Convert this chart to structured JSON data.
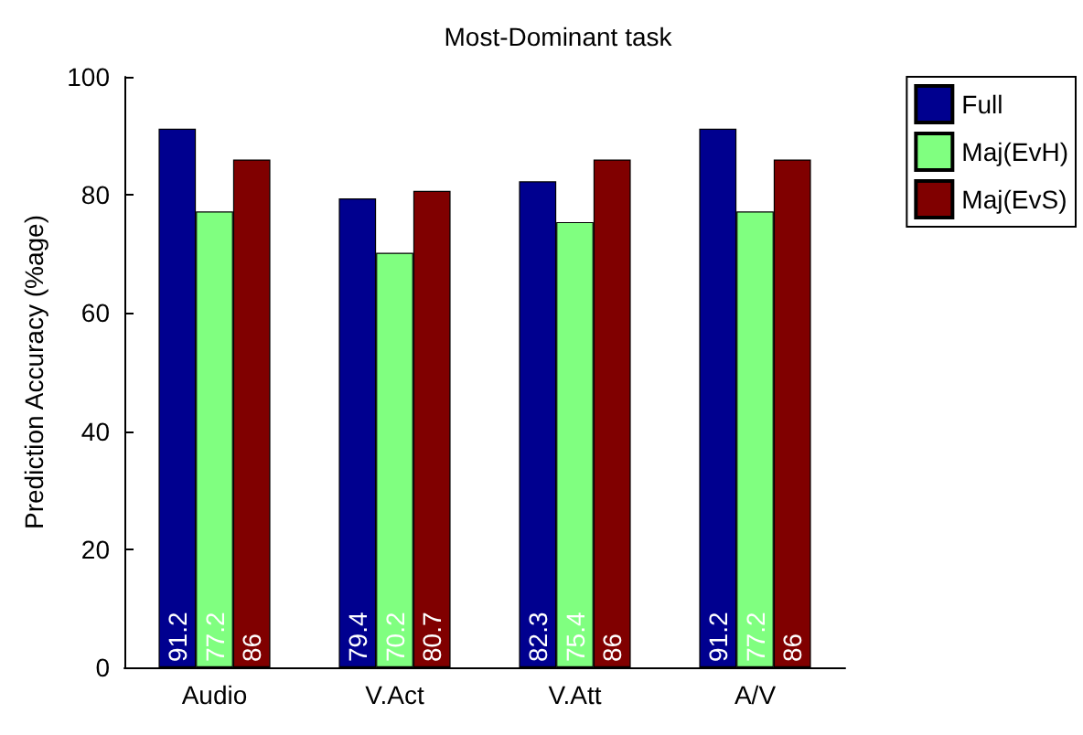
{
  "chart_data": {
    "type": "bar",
    "title": "Most-Dominant task",
    "ylabel": "Prediction Accuracy (%age)",
    "categories": [
      "Audio",
      "V.Act",
      "V.Att",
      "A/V"
    ],
    "series": [
      {
        "name": "Full",
        "color": "#00008f",
        "values": [
          91.2,
          79.4,
          82.3,
          91.2
        ]
      },
      {
        "name": "Maj(EvH)",
        "color": "#80ff80",
        "values": [
          77.2,
          70.2,
          75.4,
          77.2
        ]
      },
      {
        "name": "Maj(EvS)",
        "color": "#800000",
        "values": [
          86,
          80.7,
          86,
          86
        ]
      }
    ],
    "ylim": [
      0,
      100
    ],
    "yticks": [
      0,
      20,
      40,
      60,
      80,
      100
    ],
    "grid": false,
    "legend": "top right",
    "data_labels": true
  }
}
